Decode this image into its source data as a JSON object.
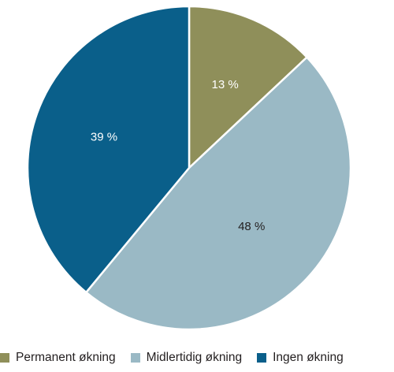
{
  "chart_data": {
    "type": "pie",
    "title": "",
    "start_angle_deg": 0,
    "direction": "clockwise",
    "slices": [
      {
        "label": "Permanent økning",
        "value": 13,
        "value_label": "13 %",
        "color": "#8f8f5a",
        "label_color": "#ffffff"
      },
      {
        "label": "Midlertidig økning",
        "value": 48,
        "value_label": "48 %",
        "color": "#9ab9c5",
        "label_color": "#231f20"
      },
      {
        "label": "Ingen økning",
        "value": 39,
        "value_label": "39 %",
        "color": "#0a5f8a",
        "label_color": "#ffffff"
      }
    ],
    "legend_position": "bottom-left"
  }
}
